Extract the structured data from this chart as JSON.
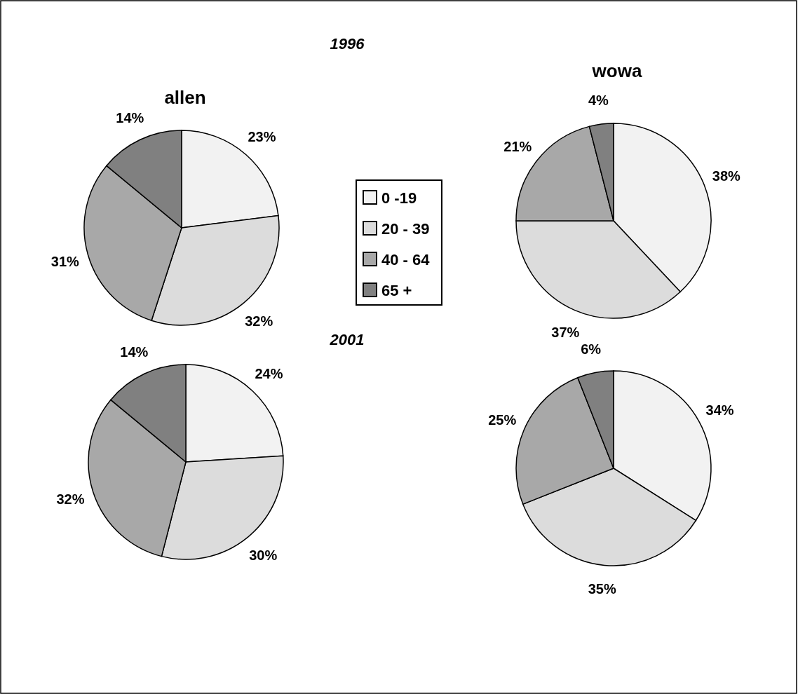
{
  "chart_data": [
    {
      "type": "pie",
      "title": "allen",
      "annotations": [
        "1996"
      ],
      "legend": "right",
      "categories": [
        "0 -19",
        "20 - 39",
        "40 - 64",
        "65 +"
      ],
      "values": [
        23,
        32,
        31,
        14
      ],
      "value_labels": [
        "23%",
        "32%",
        "31%",
        "14%"
      ],
      "colors": [
        "#f2f2f2",
        "#dcdcdc",
        "#a8a8a8",
        "#808080"
      ]
    },
    {
      "type": "pie",
      "title": "wowa",
      "categories": [
        null,
        null,
        null,
        null
      ],
      "values": [
        38,
        37,
        21,
        4
      ],
      "value_labels": [
        "38%",
        "37%",
        "21%",
        "4%"
      ],
      "colors": [
        "#f2f2f2",
        "#dcdcdc",
        "#a8a8a8",
        "#808080"
      ]
    },
    {
      "type": "pie",
      "annotations": [
        "2001"
      ],
      "categories": [
        null,
        null,
        null,
        null
      ],
      "values": [
        24,
        30,
        32,
        14
      ],
      "value_labels": [
        "24%",
        "30%",
        "32%",
        "14%"
      ],
      "colors": [
        "#f2f2f2",
        "#dcdcdc",
        "#a8a8a8",
        "#808080"
      ]
    },
    {
      "type": "pie",
      "categories": [
        null,
        null,
        null,
        null
      ],
      "values": [
        34,
        35,
        25,
        6
      ],
      "value_labels": [
        "34%",
        "35%",
        "25%",
        "6%"
      ],
      "colors": [
        "#f2f2f2",
        "#dcdcdc",
        "#a8a8a8",
        "#808080"
      ]
    }
  ]
}
